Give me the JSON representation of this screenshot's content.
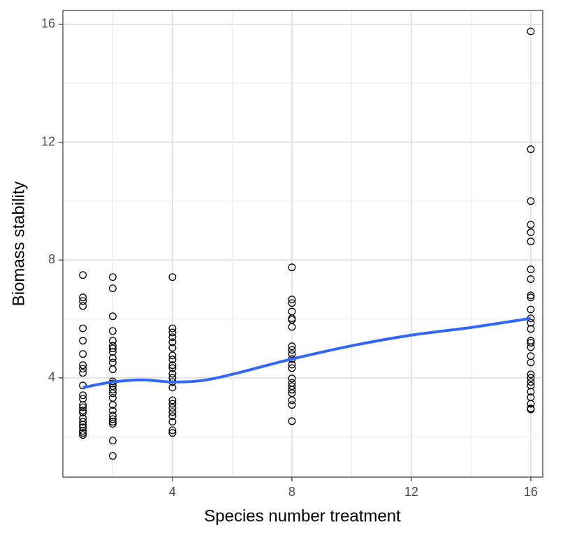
{
  "chart_data": {
    "type": "scatter",
    "x_label": "Species number treatment",
    "y_label": "Biomass stability",
    "xlim": [
      0.33,
      16.4
    ],
    "ylim": [
      0.63,
      16.47
    ],
    "xticks": [
      4,
      8,
      12,
      16
    ],
    "yticks": [
      4,
      8,
      12,
      16
    ],
    "x_minor_ticks": [
      2,
      6,
      10,
      14
    ],
    "y_minor_ticks": [
      2,
      6,
      10,
      14
    ],
    "grid": true,
    "point_color": "#000000",
    "x": [
      1,
      1,
      1,
      1,
      1,
      1,
      1,
      1,
      1,
      1,
      1,
      1,
      1,
      1,
      1,
      1,
      1,
      1,
      1,
      1,
      1,
      1,
      1,
      1,
      2,
      2,
      2,
      2,
      2,
      2,
      2,
      2,
      2,
      2,
      2,
      2,
      2,
      2,
      2,
      2,
      2,
      2,
      2,
      2,
      2,
      2,
      2,
      2,
      2,
      4,
      4,
      4,
      4,
      4,
      4,
      4,
      4,
      4,
      4,
      4,
      4,
      4,
      4,
      4,
      4,
      4,
      4,
      4,
      4,
      4,
      4,
      8,
      8,
      8,
      8,
      8,
      8,
      8,
      8,
      8,
      8,
      8,
      8,
      8,
      8,
      8,
      8,
      8,
      8,
      8,
      8,
      8,
      16,
      16,
      16,
      16,
      16,
      16,
      16,
      16,
      16,
      16,
      16,
      16,
      16,
      16,
      16,
      16,
      16,
      16,
      16,
      16,
      16,
      16,
      16,
      16,
      16,
      16,
      16,
      16
    ],
    "values": [
      7.49,
      6.73,
      6.61,
      6.44,
      5.68,
      5.26,
      4.81,
      4.43,
      4.31,
      4.17,
      3.74,
      3.41,
      3.29,
      3.08,
      3.0,
      2.89,
      2.82,
      2.63,
      2.51,
      2.41,
      2.32,
      2.2,
      2.13,
      2.06,
      7.42,
      7.04,
      6.09,
      5.59,
      5.26,
      5.09,
      5.0,
      4.88,
      4.67,
      4.52,
      4.29,
      3.88,
      3.81,
      3.72,
      3.6,
      3.48,
      3.32,
      3.08,
      2.89,
      2.72,
      2.6,
      2.51,
      2.44,
      1.87,
      1.35,
      7.42,
      5.68,
      5.54,
      5.38,
      5.21,
      5.02,
      4.76,
      4.62,
      4.43,
      4.33,
      4.14,
      4.0,
      3.86,
      3.67,
      3.24,
      3.12,
      2.98,
      2.84,
      2.7,
      2.51,
      2.22,
      2.13,
      7.75,
      6.66,
      6.54,
      6.25,
      6.02,
      5.97,
      5.73,
      5.07,
      4.95,
      4.81,
      4.64,
      4.45,
      4.33,
      3.98,
      3.83,
      3.72,
      3.6,
      3.48,
      3.24,
      3.08,
      2.53,
      15.76,
      11.76,
      10.0,
      9.2,
      8.94,
      8.63,
      7.68,
      7.35,
      6.8,
      6.73,
      6.32,
      6.02,
      5.87,
      5.66,
      5.26,
      5.19,
      5.04,
      4.74,
      4.52,
      4.12,
      4.0,
      3.86,
      3.74,
      3.53,
      3.34,
      3.12,
      2.96,
      2.93
    ],
    "smooth": {
      "color": "#3366ff",
      "x": [
        1,
        2,
        3,
        4,
        5,
        6,
        7,
        8,
        10,
        12,
        14,
        16
      ],
      "values": [
        3.67,
        3.86,
        3.93,
        3.86,
        3.91,
        4.12,
        4.38,
        4.64,
        5.09,
        5.45,
        5.71,
        6.02
      ]
    }
  }
}
